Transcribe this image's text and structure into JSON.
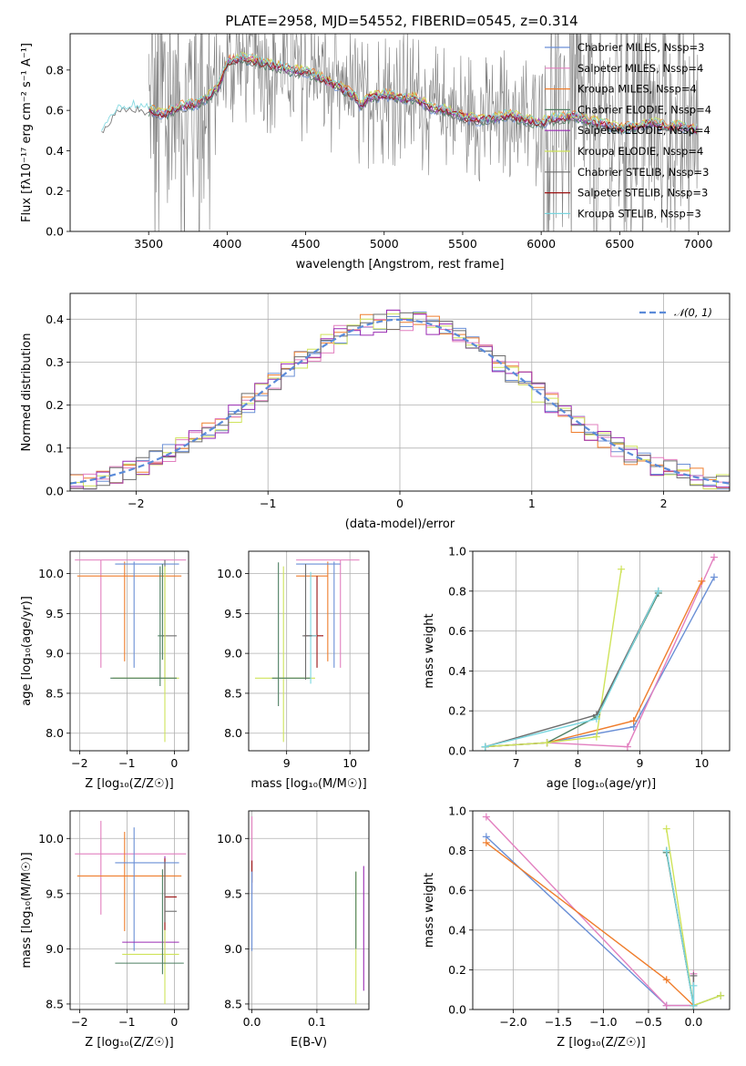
{
  "figure": {
    "title": "PLATE=2958, MJD=54552, FIBERID=0545, z=0.314"
  },
  "colors": {
    "Chabrier MILES": "#6a8fd6",
    "Salpeter MILES": "#e27fbf",
    "Kroupa MILES": "#ef7d2c",
    "Chabrier ELODIE": "#4e7f62",
    "Salpeter ELODIE": "#9a2bb3",
    "Kroupa ELODIE": "#cfe35a",
    "Chabrier STELIB": "#6d6d6d",
    "Salpeter STELIB": "#9a1111",
    "Kroupa STELIB": "#7ad6df",
    "data": "#808080",
    "normal": "#5b8bd9"
  },
  "chart_data": [
    {
      "id": "spectrum",
      "type": "line",
      "title": "PLATE=2958, MJD=54552, FIBERID=0545, z=0.314",
      "xlabel": "wavelength [Angstrom, rest frame]",
      "ylabel": "Flux [fλ10⁻¹⁷ erg cm⁻² s⁻¹ A⁻¹]",
      "xlim": [
        3000,
        7200
      ],
      "ylim": [
        0,
        0.98
      ],
      "xticks": [
        3500,
        4000,
        4500,
        5000,
        5500,
        6000,
        6500,
        7000
      ],
      "yticks": [
        0.0,
        0.2,
        0.4,
        0.6,
        0.8
      ],
      "grid": false,
      "legend_position": "top-right",
      "legend": [
        "Chabrier MILES, N_SSP=3",
        "Salpeter MILES, N_SSP=4",
        "Kroupa MILES, N_SSP=4",
        "Chabrier ELODIE, N_SSP=4",
        "Salpeter ELODIE, N_SSP=4",
        "Kroupa ELODIE, N_SSP=4",
        "Chabrier STELIB, N_SSP=3",
        "Salpeter STELIB, N_SSP=3",
        "Kroupa STELIB, N_SSP=3"
      ],
      "legend_names": [
        "Chabrier MILES",
        "Salpeter MILES",
        "Kroupa MILES",
        "Chabrier ELODIE",
        "Salpeter ELODIE",
        "Kroupa ELODIE",
        "Chabrier STELIB",
        "Salpeter STELIB",
        "Kroupa STELIB"
      ],
      "continuum": {
        "x": [
          3200,
          3300,
          3400,
          3500,
          3600,
          3700,
          3800,
          3900,
          3950,
          4000,
          4100,
          4200,
          4300,
          4400,
          4500,
          4600,
          4700,
          4800,
          4850,
          4900,
          5000,
          5100,
          5200,
          5300,
          5400,
          5500,
          5600,
          5700,
          5800,
          5900,
          6000,
          6100,
          6200,
          6300,
          6400,
          6500,
          6600,
          6700,
          6800,
          6900,
          7000
        ],
        "y": [
          0.5,
          0.6,
          0.62,
          0.6,
          0.58,
          0.62,
          0.63,
          0.68,
          0.72,
          0.84,
          0.86,
          0.84,
          0.82,
          0.8,
          0.79,
          0.76,
          0.72,
          0.68,
          0.62,
          0.66,
          0.68,
          0.66,
          0.66,
          0.61,
          0.6,
          0.57,
          0.55,
          0.56,
          0.58,
          0.55,
          0.54,
          0.56,
          0.57,
          0.55,
          0.53,
          0.51,
          0.52,
          0.54,
          0.52,
          0.52,
          0.5
        ]
      }
    },
    {
      "id": "residuals",
      "type": "bar",
      "xlabel": "(data-model)/error",
      "ylabel": "Normed distribution",
      "xlim": [
        -2.5,
        2.5
      ],
      "ylim": [
        0,
        0.46
      ],
      "xticks": [
        -2,
        -1,
        0,
        1,
        2
      ],
      "yticks": [
        0.0,
        0.1,
        0.2,
        0.3,
        0.4
      ],
      "grid": true,
      "legend_position": "top-right",
      "legend": [
        "𝒩(0, 1)"
      ],
      "bin_edges_start": -2.5,
      "bin_width": 0.1
    },
    {
      "id": "age-vs-Z",
      "type": "scatter",
      "xlabel": "Z [log₁₀(Z/Z☉)]",
      "ylabel": "age  [log₁₀(age/yr)]",
      "xlim": [
        -2.2,
        0.3
      ],
      "ylim": [
        7.78,
        10.28
      ],
      "xticks": [
        -2,
        -1,
        0
      ],
      "yticks": [
        8.0,
        8.5,
        9.0,
        9.5,
        10.0
      ],
      "grid": true,
      "points": [
        {
          "model": "Salpeter MILES",
          "x": -1.55,
          "xerr": [
            0.55,
            1.8
          ],
          "y": 10.17,
          "yerr": [
            1.35,
            0.0
          ]
        },
        {
          "model": "Kroupa MILES",
          "x": -1.05,
          "xerr": [
            1.0,
            1.2
          ],
          "y": 9.97,
          "yerr": [
            1.07,
            0.18
          ]
        },
        {
          "model": "Chabrier MILES",
          "x": -0.85,
          "xerr": [
            0.4,
            0.95
          ],
          "y": 10.12,
          "yerr": [
            1.3,
            0.03
          ]
        },
        {
          "model": "Chabrier ELODIE",
          "x": -0.25,
          "xerr": [
            0.1,
            0.05
          ],
          "y": 9.22,
          "yerr": [
            0.3,
            0.9
          ]
        },
        {
          "model": "Chabrier STELIB",
          "x": -0.2,
          "xerr": [
            0.05,
            0.25
          ],
          "y": 9.22,
          "yerr": [
            0.55,
            0.95
          ]
        },
        {
          "model": "Kroupa ELODIE",
          "x": -0.2,
          "xerr": [
            1.1,
            0.3
          ],
          "y": 8.69,
          "yerr": [
            0.8,
            1.4
          ]
        },
        {
          "model": "Chabrier ELODIE",
          "x": -0.3,
          "xerr": [
            1.05,
            0.35
          ],
          "y": 8.69,
          "yerr": [
            0.1,
            1.4
          ]
        }
      ]
    },
    {
      "id": "age-vs-mass",
      "type": "scatter",
      "xlabel": "mass [log₁₀(M/M☉)]",
      "ylabel": "",
      "xlim": [
        8.4,
        10.3
      ],
      "ylim": [
        7.78,
        10.28
      ],
      "xticks": [
        9,
        10
      ],
      "yticks": [
        8.0,
        8.5,
        9.0,
        9.5,
        10.0
      ],
      "grid": true,
      "points": [
        {
          "model": "Salpeter MILES",
          "x": 9.85,
          "xerr": [
            0.7,
            0.3
          ],
          "y": 10.17,
          "yerr": [
            1.35,
            0.0
          ]
        },
        {
          "model": "Kroupa MILES",
          "x": 9.65,
          "xerr": [
            0.5,
            0.0
          ],
          "y": 9.97,
          "yerr": [
            1.07,
            0.18
          ]
        },
        {
          "model": "Chabrier MILES",
          "x": 9.75,
          "xerr": [
            0.6,
            0.1
          ],
          "y": 10.12,
          "yerr": [
            1.3,
            0.03
          ]
        },
        {
          "model": "Kroupa ELODIE",
          "x": 8.95,
          "xerr": [
            0.45,
            0.5
          ],
          "y": 8.69,
          "yerr": [
            0.8,
            1.4
          ]
        },
        {
          "model": "Chabrier ELODIE",
          "x": 8.87,
          "xerr": [
            0.1,
            0.5
          ],
          "y": 8.69,
          "yerr": [
            0.35,
            1.45
          ]
        },
        {
          "model": "Salpeter STELIB",
          "x": 9.48,
          "xerr": [
            0.2,
            0.1
          ],
          "y": 9.22,
          "yerr": [
            0.4,
            0.75
          ]
        },
        {
          "model": "Kroupa STELIB",
          "x": 9.38,
          "xerr": [
            0.05,
            0.1
          ],
          "y": 9.22,
          "yerr": [
            0.6,
            0.8
          ]
        },
        {
          "model": "Chabrier STELIB",
          "x": 9.3,
          "xerr": [
            0.05,
            0.1
          ],
          "y": 9.22,
          "yerr": [
            0.55,
            0.9
          ]
        }
      ]
    },
    {
      "id": "weight-vs-age",
      "type": "line",
      "xlabel": "age  [log₁₀(age/yr)]",
      "ylabel": "mass weight",
      "xlim": [
        6.3,
        10.45
      ],
      "ylim": [
        0,
        1.0
      ],
      "xticks": [
        7,
        8,
        9,
        10
      ],
      "yticks": [
        0.0,
        0.2,
        0.4,
        0.6,
        0.8,
        1.0
      ],
      "grid": true,
      "series": [
        {
          "model": "Chabrier MILES",
          "x": [
            6.5,
            7.5,
            8.9,
            10.2
          ],
          "y": [
            0.02,
            0.04,
            0.12,
            0.87
          ]
        },
        {
          "model": "Salpeter MILES",
          "x": [
            6.5,
            7.5,
            8.8,
            10.2
          ],
          "y": [
            0.02,
            0.04,
            0.02,
            0.97
          ]
        },
        {
          "model": "Kroupa MILES",
          "x": [
            6.5,
            7.5,
            8.9,
            10.0
          ],
          "y": [
            0.02,
            0.04,
            0.15,
            0.85
          ]
        },
        {
          "model": "Chabrier ELODIE",
          "x": [
            6.5,
            7.5,
            8.3,
            9.3
          ],
          "y": [
            0.02,
            0.04,
            0.17,
            0.79
          ]
        },
        {
          "model": "Kroupa ELODIE",
          "x": [
            6.5,
            7.5,
            8.3,
            8.7
          ],
          "y": [
            0.02,
            0.04,
            0.07,
            0.91
          ]
        },
        {
          "model": "Chabrier STELIB",
          "x": [
            6.5,
            8.3,
            9.3
          ],
          "y": [
            0.02,
            0.18,
            0.8
          ]
        },
        {
          "model": "Kroupa STELIB",
          "x": [
            6.5,
            8.3,
            9.3
          ],
          "y": [
            0.02,
            0.16,
            0.8
          ]
        }
      ]
    },
    {
      "id": "mass-vs-Z",
      "type": "scatter",
      "xlabel": "Z [log₁₀(Z/Z☉)]",
      "ylabel": "mass [log₁₀(M/M☉)]",
      "xlim": [
        -2.2,
        0.3
      ],
      "ylim": [
        8.45,
        10.25
      ],
      "xticks": [
        -2,
        -1,
        0
      ],
      "yticks": [
        8.5,
        9.0,
        9.5,
        10.0
      ],
      "grid": true,
      "points": [
        {
          "model": "Salpeter MILES",
          "x": -1.55,
          "xerr": [
            0.55,
            1.8
          ],
          "y": 9.86,
          "yerr": [
            0.55,
            0.3
          ]
        },
        {
          "model": "Kroupa MILES",
          "x": -1.05,
          "xerr": [
            1.0,
            1.2
          ],
          "y": 9.66,
          "yerr": [
            0.5,
            0.4
          ]
        },
        {
          "model": "Chabrier MILES",
          "x": -0.85,
          "xerr": [
            0.4,
            0.95
          ],
          "y": 9.78,
          "yerr": [
            0.8,
            0.32
          ]
        },
        {
          "model": "Salpeter ELODIE",
          "x": -0.2,
          "xerr": [
            0.9,
            0.3
          ],
          "y": 9.06,
          "yerr": [
            0.2,
            0.78
          ]
        },
        {
          "model": "Kroupa ELODIE",
          "x": -0.2,
          "xerr": [
            0.9,
            0.3
          ],
          "y": 8.95,
          "yerr": [
            0.45,
            0.8
          ]
        },
        {
          "model": "Chabrier ELODIE",
          "x": -0.25,
          "xerr": [
            1.0,
            0.45
          ],
          "y": 8.87,
          "yerr": [
            0.1,
            0.85
          ]
        },
        {
          "model": "Salpeter STELIB",
          "x": -0.2,
          "xerr": [
            0.0,
            0.25
          ],
          "y": 9.47,
          "yerr": [
            0.3,
            0.35
          ]
        },
        {
          "model": "Chabrier STELIB",
          "x": -0.2,
          "xerr": [
            0.0,
            0.25
          ],
          "y": 9.34,
          "yerr": [
            0.1,
            0.45
          ]
        }
      ]
    },
    {
      "id": "mass-vs-EBV",
      "type": "scatter",
      "xlabel": "E(B-V)",
      "ylabel": "",
      "xlim": [
        -0.005,
        0.18
      ],
      "ylim": [
        8.45,
        10.25
      ],
      "xticks": [
        0.0,
        0.1
      ],
      "yticks": [
        8.5,
        9.0,
        9.5,
        10.0
      ],
      "grid": true,
      "points": [
        {
          "model": "Salpeter MILES",
          "x": 0.0,
          "xerr": [
            0,
            0
          ],
          "y": 9.9,
          "yerr": [
            0.4,
            0.3
          ]
        },
        {
          "model": "Salpeter STELIB",
          "x": 0.0,
          "xerr": [
            0,
            0
          ],
          "y": 9.7,
          "yerr": [
            0.1,
            0.1
          ]
        },
        {
          "model": "Chabrier MILES",
          "x": 0.0,
          "xerr": [
            0,
            0
          ],
          "y": 9.3,
          "yerr": [
            0.32,
            0.4
          ]
        },
        {
          "model": "Kroupa ELODIE",
          "x": 0.16,
          "xerr": [
            0,
            0
          ],
          "y": 9.2,
          "yerr": [
            0.7,
            0.5
          ]
        },
        {
          "model": "Chabrier ELODIE",
          "x": 0.16,
          "xerr": [
            0,
            0
          ],
          "y": 9.3,
          "yerr": [
            0.3,
            0.4
          ]
        },
        {
          "model": "Salpeter ELODIE",
          "x": 0.172,
          "xerr": [
            0,
            0
          ],
          "y": 9.2,
          "yerr": [
            0.58,
            0.55
          ]
        }
      ]
    },
    {
      "id": "weight-vs-Z",
      "type": "line",
      "xlabel": "Z [log₁₀(Z/Z☉)]",
      "ylabel": "mass weight",
      "xlim": [
        -2.45,
        0.4
      ],
      "ylim": [
        0,
        1.0
      ],
      "xticks": [
        -2.0,
        -1.5,
        -1.0,
        -0.5,
        0.0
      ],
      "yticks": [
        0.0,
        0.2,
        0.4,
        0.6,
        0.8,
        1.0
      ],
      "grid": true,
      "series": [
        {
          "model": "Chabrier MILES",
          "x": [
            -2.3,
            -0.3,
            0.0
          ],
          "y": [
            0.87,
            0.02,
            0.02
          ]
        },
        {
          "model": "Salpeter MILES",
          "x": [
            -2.3,
            -0.3,
            0.0,
            0.0
          ],
          "y": [
            0.97,
            0.02,
            0.02,
            0.18
          ]
        },
        {
          "model": "Kroupa MILES",
          "x": [
            -2.3,
            -0.3,
            0.0
          ],
          "y": [
            0.84,
            0.15,
            0.02
          ]
        },
        {
          "model": "Chabrier ELODIE",
          "x": [
            -0.3,
            0.0,
            0.3
          ],
          "y": [
            0.79,
            0.02,
            0.07
          ]
        },
        {
          "model": "Kroupa ELODIE",
          "x": [
            -0.3,
            0.0,
            0.3
          ],
          "y": [
            0.91,
            0.02,
            0.07
          ]
        },
        {
          "model": "Chabrier STELIB",
          "x": [
            -0.3,
            0.0,
            0.0
          ],
          "y": [
            0.8,
            0.02,
            0.17
          ]
        },
        {
          "model": "Kroupa STELIB",
          "x": [
            -0.3,
            0.0,
            0.0
          ],
          "y": [
            0.8,
            0.02,
            0.12
          ]
        }
      ]
    }
  ]
}
